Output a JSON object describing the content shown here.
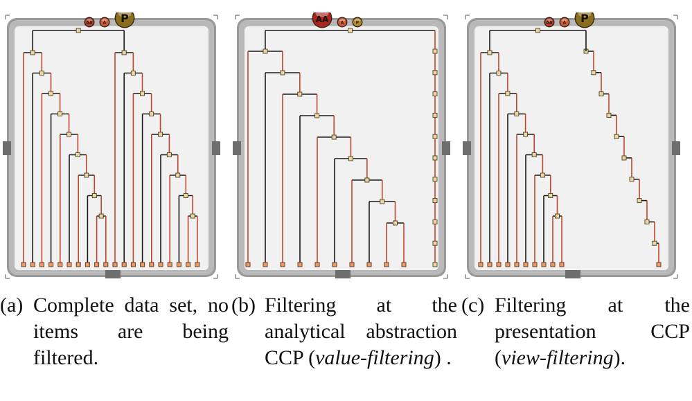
{
  "panels": [
    {
      "id": "a",
      "badges": [
        {
          "label": "AA",
          "color": "#b5412b",
          "size": "small"
        },
        {
          "label": "A",
          "color": "#cf5a35",
          "size": "small"
        },
        {
          "label": "P",
          "color": "#8a6d1e",
          "size": "large"
        }
      ]
    },
    {
      "id": "b",
      "badges": [
        {
          "label": "AA",
          "color": "#a8261f",
          "size": "large"
        },
        {
          "label": "A",
          "color": "#cf5a35",
          "size": "small"
        },
        {
          "label": "P",
          "color": "#b08a2a",
          "size": "small"
        }
      ]
    },
    {
      "id": "c",
      "badges": [
        {
          "label": "AA",
          "color": "#b5412b",
          "size": "small"
        },
        {
          "label": "A",
          "color": "#cf5a35",
          "size": "small"
        },
        {
          "label": "P",
          "color": "#8a6d1e",
          "size": "large"
        }
      ]
    }
  ],
  "captions": [
    {
      "label": "(a)",
      "pre": "Complete data set, no items are being filtered.",
      "italic": "",
      "post": ""
    },
    {
      "label": "(b)",
      "pre": "Filtering at the analytical abstraction CCP (",
      "italic": "value-filtering",
      "post": ") ."
    },
    {
      "label": "(c)",
      "pre": "Filtering at the presentation CCP (",
      "italic": "view-filtering",
      "post": ")."
    }
  ],
  "colors": {
    "frame": "#9a9a9a",
    "inner": "#f1f1f1",
    "edge_dark": "#1a1a1a",
    "edge_red": "#c0452a",
    "node_fill": "#e8d9a8",
    "node_stroke": "#5a4a2a",
    "leaf_fill": "#e89a6a"
  }
}
